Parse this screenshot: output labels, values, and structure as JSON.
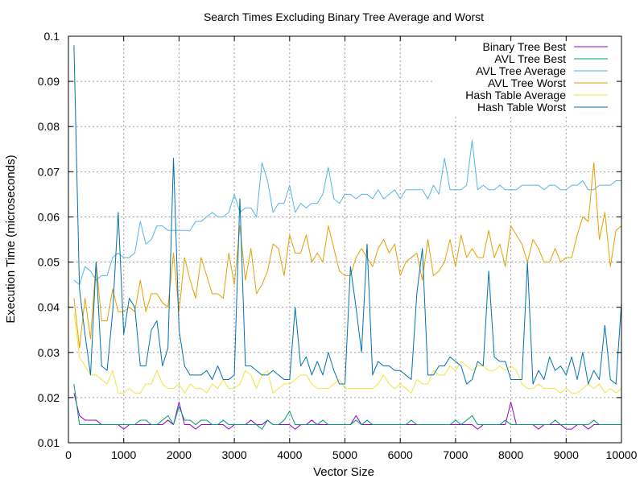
{
  "chart_data": {
    "type": "line",
    "title": "Search Times Excluding Binary Tree Average and Worst",
    "xlabel": "Vector Size",
    "ylabel": "Execution Time (microseconds)",
    "xlim": [
      0,
      10000
    ],
    "ylim": [
      0.01,
      0.1
    ],
    "xticks": [
      0,
      1000,
      2000,
      3000,
      4000,
      5000,
      6000,
      7000,
      8000,
      9000,
      10000
    ],
    "yticks": [
      0.01,
      0.02,
      0.03,
      0.04,
      0.05,
      0.06,
      0.07,
      0.08,
      0.09,
      0.1
    ],
    "grid": true,
    "legend_position": "top-right",
    "x": [
      100,
      200,
      300,
      400,
      500,
      600,
      700,
      800,
      900,
      1000,
      1100,
      1200,
      1300,
      1400,
      1500,
      1600,
      1700,
      1800,
      1900,
      2000,
      2100,
      2200,
      2300,
      2400,
      2500,
      2600,
      2700,
      2800,
      2900,
      3000,
      3100,
      3200,
      3300,
      3400,
      3500,
      3600,
      3700,
      3800,
      3900,
      4000,
      4100,
      4200,
      4300,
      4400,
      4500,
      4600,
      4700,
      4800,
      4900,
      5000,
      5100,
      5200,
      5300,
      5400,
      5500,
      5600,
      5700,
      5800,
      5900,
      6000,
      6100,
      6200,
      6300,
      6400,
      6500,
      6600,
      6700,
      6800,
      6900,
      7000,
      7100,
      7200,
      7300,
      7400,
      7500,
      7600,
      7700,
      7800,
      7900,
      8000,
      8100,
      8200,
      8300,
      8400,
      8500,
      8600,
      8700,
      8800,
      8900,
      9000,
      9100,
      9200,
      9300,
      9400,
      9500,
      9600,
      9700,
      9800,
      9900,
      10000
    ],
    "series": [
      {
        "name": "Binary Tree Best",
        "color": "#9400d3",
        "values": [
          0.021,
          0.016,
          0.015,
          0.015,
          0.015,
          0.014,
          0.014,
          0.014,
          0.014,
          0.013,
          0.014,
          0.014,
          0.014,
          0.014,
          0.014,
          0.014,
          0.014,
          0.015,
          0.014,
          0.019,
          0.014,
          0.014,
          0.013,
          0.014,
          0.014,
          0.014,
          0.014,
          0.014,
          0.013,
          0.014,
          0.014,
          0.014,
          0.015,
          0.014,
          0.014,
          0.015,
          0.014,
          0.014,
          0.014,
          0.014,
          0.013,
          0.014,
          0.014,
          0.015,
          0.014,
          0.014,
          0.014,
          0.014,
          0.014,
          0.014,
          0.014,
          0.016,
          0.014,
          0.014,
          0.014,
          0.014,
          0.014,
          0.014,
          0.014,
          0.014,
          0.014,
          0.014,
          0.014,
          0.014,
          0.014,
          0.014,
          0.014,
          0.014,
          0.014,
          0.014,
          0.014,
          0.014,
          0.014,
          0.013,
          0.014,
          0.014,
          0.014,
          0.014,
          0.014,
          0.019,
          0.014,
          0.014,
          0.014,
          0.014,
          0.013,
          0.014,
          0.014,
          0.014,
          0.014,
          0.013,
          0.013,
          0.014,
          0.014,
          0.013,
          0.014,
          0.014,
          0.014,
          0.014,
          0.014,
          0.014
        ]
      },
      {
        "name": "AVL Tree Best",
        "color": "#009e73",
        "values": [
          0.023,
          0.014,
          0.014,
          0.014,
          0.014,
          0.014,
          0.014,
          0.014,
          0.014,
          0.014,
          0.014,
          0.014,
          0.015,
          0.015,
          0.014,
          0.014,
          0.015,
          0.016,
          0.014,
          0.018,
          0.015,
          0.015,
          0.014,
          0.015,
          0.015,
          0.014,
          0.014,
          0.015,
          0.014,
          0.014,
          0.014,
          0.014,
          0.014,
          0.014,
          0.013,
          0.015,
          0.014,
          0.014,
          0.015,
          0.017,
          0.014,
          0.014,
          0.014,
          0.014,
          0.014,
          0.015,
          0.014,
          0.014,
          0.014,
          0.014,
          0.014,
          0.015,
          0.014,
          0.015,
          0.014,
          0.014,
          0.014,
          0.014,
          0.014,
          0.014,
          0.014,
          0.015,
          0.014,
          0.014,
          0.014,
          0.014,
          0.014,
          0.014,
          0.014,
          0.015,
          0.014,
          0.015,
          0.016,
          0.014,
          0.014,
          0.014,
          0.014,
          0.014,
          0.015,
          0.014,
          0.014,
          0.014,
          0.014,
          0.014,
          0.014,
          0.014,
          0.014,
          0.015,
          0.014,
          0.014,
          0.014,
          0.014,
          0.014,
          0.014,
          0.015,
          0.014,
          0.014,
          0.014,
          0.014,
          0.014
        ]
      },
      {
        "name": "AVL Tree Average",
        "color": "#56b4e9",
        "values": [
          0.046,
          0.045,
          0.049,
          0.048,
          0.046,
          0.047,
          0.047,
          0.051,
          0.052,
          0.051,
          0.051,
          0.052,
          0.059,
          0.054,
          0.055,
          0.058,
          0.058,
          0.057,
          0.057,
          0.057,
          0.057,
          0.057,
          0.059,
          0.059,
          0.06,
          0.061,
          0.06,
          0.06,
          0.061,
          0.065,
          0.061,
          0.062,
          0.062,
          0.06,
          0.072,
          0.068,
          0.061,
          0.063,
          0.063,
          0.067,
          0.061,
          0.063,
          0.062,
          0.063,
          0.063,
          0.065,
          0.071,
          0.064,
          0.063,
          0.065,
          0.065,
          0.064,
          0.065,
          0.065,
          0.064,
          0.066,
          0.064,
          0.065,
          0.066,
          0.064,
          0.066,
          0.066,
          0.066,
          0.066,
          0.064,
          0.067,
          0.065,
          0.073,
          0.066,
          0.066,
          0.066,
          0.067,
          0.077,
          0.066,
          0.067,
          0.066,
          0.066,
          0.067,
          0.066,
          0.066,
          0.066,
          0.067,
          0.067,
          0.067,
          0.067,
          0.066,
          0.067,
          0.067,
          0.066,
          0.066,
          0.067,
          0.067,
          0.068,
          0.066,
          0.066,
          0.067,
          0.067,
          0.067,
          0.068,
          0.068
        ]
      },
      {
        "name": "AVL Tree Worst",
        "color": "#e69f00",
        "values": [
          0.042,
          0.031,
          0.042,
          0.033,
          0.05,
          0.037,
          0.037,
          0.044,
          0.039,
          0.039,
          0.04,
          0.039,
          0.046,
          0.039,
          0.043,
          0.043,
          0.041,
          0.04,
          0.052,
          0.039,
          0.051,
          0.046,
          0.042,
          0.051,
          0.047,
          0.043,
          0.043,
          0.042,
          0.052,
          0.045,
          0.058,
          0.046,
          0.053,
          0.043,
          0.045,
          0.048,
          0.054,
          0.053,
          0.047,
          0.056,
          0.052,
          0.052,
          0.056,
          0.05,
          0.052,
          0.05,
          0.058,
          0.053,
          0.048,
          0.047,
          0.047,
          0.051,
          0.053,
          0.051,
          0.049,
          0.053,
          0.055,
          0.052,
          0.054,
          0.047,
          0.05,
          0.051,
          0.052,
          0.046,
          0.055,
          0.047,
          0.048,
          0.05,
          0.055,
          0.049,
          0.056,
          0.051,
          0.053,
          0.051,
          0.051,
          0.057,
          0.051,
          0.054,
          0.049,
          0.058,
          0.056,
          0.054,
          0.05,
          0.055,
          0.053,
          0.05,
          0.05,
          0.053,
          0.05,
          0.051,
          0.051,
          0.056,
          0.06,
          0.059,
          0.072,
          0.055,
          0.061,
          0.049,
          0.057,
          0.058
        ]
      },
      {
        "name": "Hash Table Average",
        "color": "#f0e442",
        "values": [
          0.039,
          0.029,
          0.027,
          0.025,
          0.025,
          0.024,
          0.023,
          0.026,
          0.021,
          0.021,
          0.022,
          0.021,
          0.021,
          0.023,
          0.023,
          0.026,
          0.023,
          0.022,
          0.022,
          0.023,
          0.021,
          0.023,
          0.022,
          0.022,
          0.021,
          0.023,
          0.022,
          0.024,
          0.022,
          0.022,
          0.023,
          0.026,
          0.025,
          0.022,
          0.025,
          0.026,
          0.021,
          0.022,
          0.023,
          0.023,
          0.024,
          0.025,
          0.025,
          0.023,
          0.022,
          0.022,
          0.022,
          0.023,
          0.024,
          0.022,
          0.022,
          0.022,
          0.022,
          0.022,
          0.022,
          0.023,
          0.025,
          0.023,
          0.022,
          0.023,
          0.022,
          0.021,
          0.024,
          0.023,
          0.023,
          0.026,
          0.025,
          0.025,
          0.027,
          0.026,
          0.028,
          0.027,
          0.026,
          0.027,
          0.027,
          0.026,
          0.026,
          0.027,
          0.026,
          0.027,
          0.026,
          0.023,
          0.022,
          0.022,
          0.023,
          0.022,
          0.022,
          0.022,
          0.021,
          0.022,
          0.021,
          0.021,
          0.022,
          0.023,
          0.022,
          0.023,
          0.021,
          0.022,
          0.021,
          0.022
        ]
      },
      {
        "name": "Hash Table Worst",
        "color": "#0072b2",
        "values": [
          0.098,
          0.044,
          0.034,
          0.025,
          0.05,
          0.027,
          0.026,
          0.039,
          0.061,
          0.034,
          0.042,
          0.04,
          0.027,
          0.027,
          0.035,
          0.037,
          0.027,
          0.031,
          0.073,
          0.035,
          0.027,
          0.025,
          0.025,
          0.025,
          0.026,
          0.024,
          0.027,
          0.024,
          0.024,
          0.025,
          0.064,
          0.027,
          0.027,
          0.026,
          0.025,
          0.025,
          0.026,
          0.025,
          0.024,
          0.024,
          0.04,
          0.027,
          0.029,
          0.025,
          0.028,
          0.025,
          0.03,
          0.026,
          0.023,
          0.023,
          0.049,
          0.04,
          0.03,
          0.054,
          0.025,
          0.028,
          0.027,
          0.027,
          0.026,
          0.026,
          0.025,
          0.024,
          0.043,
          0.053,
          0.025,
          0.025,
          0.027,
          0.027,
          0.029,
          0.028,
          0.027,
          0.023,
          0.024,
          0.028,
          0.027,
          0.048,
          0.029,
          0.028,
          0.028,
          0.024,
          0.024,
          0.024,
          0.05,
          0.023,
          0.026,
          0.024,
          0.029,
          0.026,
          0.027,
          0.025,
          0.029,
          0.024,
          0.03,
          0.023,
          0.026,
          0.024,
          0.036,
          0.024,
          0.023,
          0.041
        ]
      }
    ]
  }
}
